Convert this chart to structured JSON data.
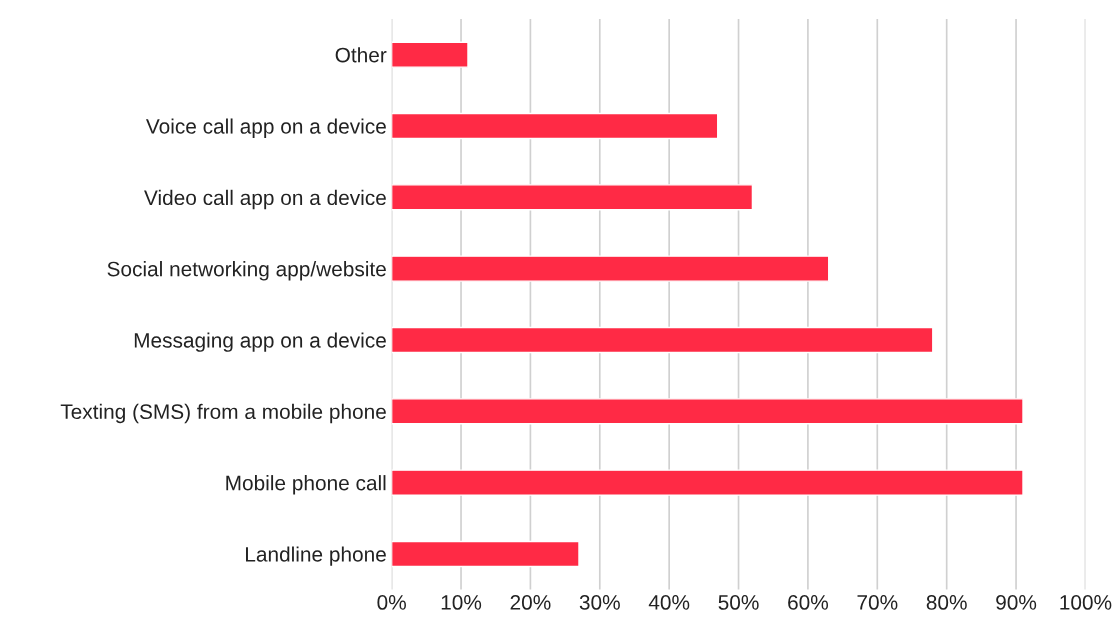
{
  "chart_data": {
    "type": "bar",
    "orientation": "horizontal",
    "categories": [
      "Other",
      "Voice call app on a device",
      "Video call app on a device",
      "Social networking app/website",
      "Messaging app on a device",
      "Texting (SMS) from a mobile phone",
      "Mobile phone call",
      "Landline phone"
    ],
    "values": [
      11,
      47,
      52,
      63,
      78,
      91,
      91,
      27
    ],
    "color": "#ff2a45",
    "xlim": [
      0,
      100
    ],
    "xticks": [
      {
        "value": 0,
        "label": "0%"
      },
      {
        "value": 10,
        "label": "10%"
      },
      {
        "value": 20,
        "label": "20%"
      },
      {
        "value": 30,
        "label": "30%"
      },
      {
        "value": 40,
        "label": "40%"
      },
      {
        "value": 50,
        "label": "50%"
      },
      {
        "value": 60,
        "label": "60%"
      },
      {
        "value": 70,
        "label": "70%"
      },
      {
        "value": 80,
        "label": "80%"
      },
      {
        "value": 90,
        "label": "90%"
      },
      {
        "value": 100,
        "label": "100%"
      }
    ],
    "grid": "x",
    "legend": false
  }
}
